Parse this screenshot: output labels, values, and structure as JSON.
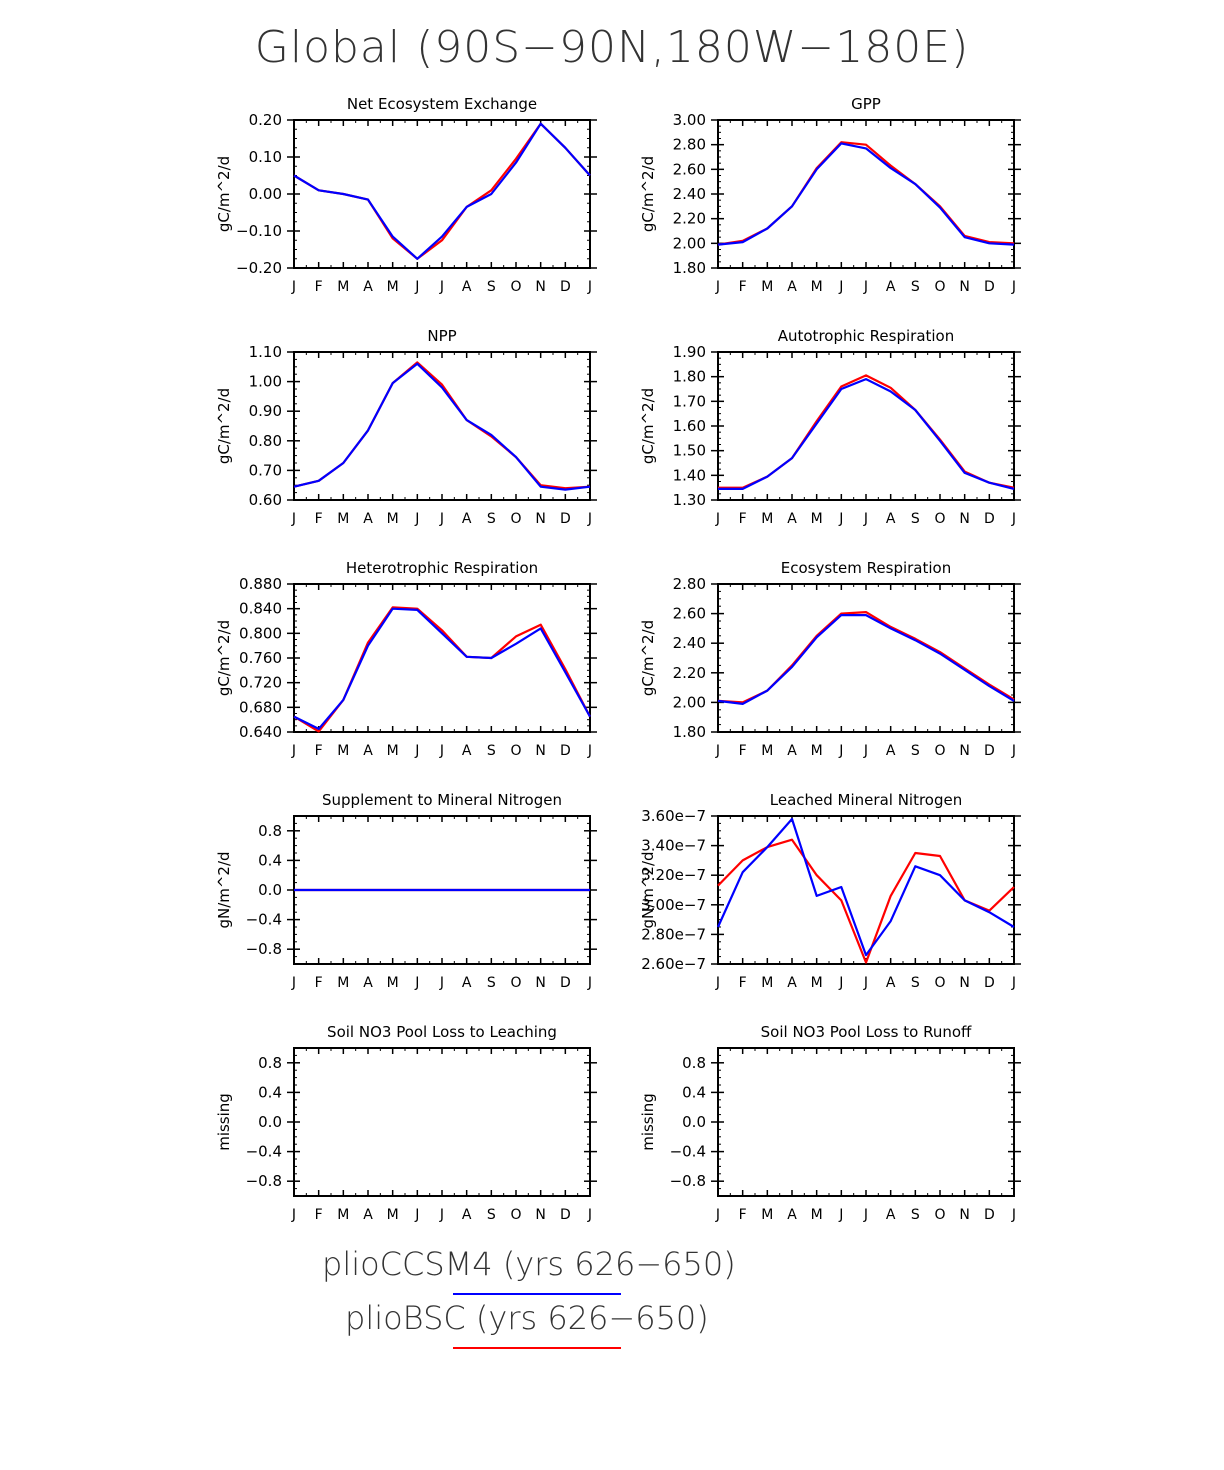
{
  "title": "Global (90S−90N,180W−180E)",
  "months": [
    "J",
    "F",
    "M",
    "A",
    "M",
    "J",
    "J",
    "A",
    "S",
    "O",
    "N",
    "D",
    "J"
  ],
  "colors": {
    "pliocssm4": "#0000ff",
    "pliobsc": "#ff0000"
  },
  "legend": [
    {
      "label": "plioCCSM4 (yrs 626−650)",
      "color": "#0000ff"
    },
    {
      "label": "plioBSC (yrs 626−650)",
      "color": "#ff0000"
    }
  ],
  "chart_data": [
    {
      "type": "line",
      "title": "Net Ecosystem Exchange",
      "ylabel": "gC/m^2/d",
      "ylim": [
        -0.2,
        0.2
      ],
      "yticks": [
        -0.2,
        -0.1,
        0.0,
        0.1,
        0.2
      ],
      "decimals": 2,
      "series": [
        {
          "color": "#ff0000",
          "values": [
            0.05,
            0.01,
            0.0,
            -0.015,
            -0.12,
            -0.175,
            -0.125,
            -0.035,
            0.01,
            0.095,
            0.19,
            0.125,
            0.05
          ]
        },
        {
          "color": "#0000ff",
          "values": [
            0.05,
            0.01,
            0.0,
            -0.015,
            -0.115,
            -0.175,
            -0.115,
            -0.035,
            0.0,
            0.085,
            0.19,
            0.125,
            0.05
          ]
        }
      ]
    },
    {
      "type": "line",
      "title": "GPP",
      "ylabel": "gC/m^2/d",
      "ylim": [
        1.8,
        3.0
      ],
      "yticks": [
        1.8,
        2.0,
        2.2,
        2.4,
        2.6,
        2.8,
        3.0
      ],
      "decimals": 2,
      "series": [
        {
          "color": "#ff0000",
          "values": [
            1.99,
            2.02,
            2.12,
            2.3,
            2.61,
            2.82,
            2.8,
            2.63,
            2.48,
            2.3,
            2.06,
            2.01,
            2.0
          ]
        },
        {
          "color": "#0000ff",
          "values": [
            1.99,
            2.01,
            2.12,
            2.3,
            2.6,
            2.81,
            2.77,
            2.61,
            2.48,
            2.29,
            2.05,
            2.0,
            1.99
          ]
        }
      ]
    },
    {
      "type": "line",
      "title": "NPP",
      "ylabel": "gC/m^2/d",
      "ylim": [
        0.6,
        1.1
      ],
      "yticks": [
        0.6,
        0.7,
        0.8,
        0.9,
        1.0,
        1.1
      ],
      "decimals": 2,
      "series": [
        {
          "color": "#ff0000",
          "values": [
            0.645,
            0.665,
            0.725,
            0.835,
            0.995,
            1.065,
            0.99,
            0.87,
            0.815,
            0.745,
            0.65,
            0.64,
            0.645
          ]
        },
        {
          "color": "#0000ff",
          "values": [
            0.645,
            0.665,
            0.725,
            0.835,
            0.995,
            1.06,
            0.98,
            0.87,
            0.82,
            0.745,
            0.645,
            0.635,
            0.645
          ]
        }
      ]
    },
    {
      "type": "line",
      "title": "Autotrophic Respiration",
      "ylabel": "gC/m^2/d",
      "ylim": [
        1.3,
        1.9
      ],
      "yticks": [
        1.3,
        1.4,
        1.5,
        1.6,
        1.7,
        1.8,
        1.9
      ],
      "decimals": 2,
      "series": [
        {
          "color": "#ff0000",
          "values": [
            1.35,
            1.35,
            1.395,
            1.47,
            1.62,
            1.76,
            1.805,
            1.755,
            1.665,
            1.545,
            1.415,
            1.37,
            1.35
          ]
        },
        {
          "color": "#0000ff",
          "values": [
            1.345,
            1.345,
            1.395,
            1.47,
            1.61,
            1.75,
            1.79,
            1.74,
            1.665,
            1.54,
            1.41,
            1.37,
            1.345
          ]
        }
      ]
    },
    {
      "type": "line",
      "title": "Heterotrophic Respiration",
      "ylabel": "gC/m^2/d",
      "ylim": [
        0.64,
        0.88
      ],
      "yticks": [
        0.64,
        0.68,
        0.72,
        0.76,
        0.8,
        0.84,
        0.88
      ],
      "decimals": 3,
      "series": [
        {
          "color": "#ff0000",
          "values": [
            0.665,
            0.641,
            0.692,
            0.785,
            0.842,
            0.84,
            0.805,
            0.762,
            0.76,
            0.795,
            0.814,
            0.742,
            0.665
          ]
        },
        {
          "color": "#0000ff",
          "values": [
            0.665,
            0.645,
            0.692,
            0.78,
            0.84,
            0.838,
            0.8,
            0.762,
            0.76,
            0.783,
            0.808,
            0.737,
            0.665
          ]
        }
      ]
    },
    {
      "type": "line",
      "title": "Ecosystem Respiration",
      "ylabel": "gC/m^2/d",
      "ylim": [
        1.8,
        2.8
      ],
      "yticks": [
        1.8,
        2.0,
        2.2,
        2.4,
        2.6,
        2.8
      ],
      "decimals": 2,
      "series": [
        {
          "color": "#ff0000",
          "values": [
            2.01,
            2.0,
            2.08,
            2.25,
            2.45,
            2.6,
            2.61,
            2.51,
            2.43,
            2.34,
            2.23,
            2.12,
            2.02
          ]
        },
        {
          "color": "#0000ff",
          "values": [
            2.01,
            1.99,
            2.08,
            2.24,
            2.44,
            2.59,
            2.59,
            2.5,
            2.42,
            2.33,
            2.22,
            2.11,
            2.01
          ]
        }
      ]
    },
    {
      "type": "line",
      "title": "Supplement to Mineral Nitrogen",
      "ylabel": "gN/m^2/d",
      "ylim": [
        -1.0,
        1.0
      ],
      "yticks": [
        -0.8,
        -0.4,
        0.0,
        0.4,
        0.8
      ],
      "decimals": 1,
      "series": [
        {
          "color": "#ff0000",
          "values": [
            0,
            0,
            0,
            0,
            0,
            0,
            0,
            0,
            0,
            0,
            0,
            0,
            0
          ]
        },
        {
          "color": "#0000ff",
          "values": [
            0,
            0,
            0,
            0,
            0,
            0,
            0,
            0,
            0,
            0,
            0,
            0,
            0
          ]
        }
      ]
    },
    {
      "type": "line",
      "title": "Leached Mineral Nitrogen",
      "ylabel": "gN/m^2/d",
      "ylim": [
        2.6e-07,
        3.6e-07
      ],
      "yticks": [
        2.6e-07,
        2.8e-07,
        3e-07,
        3.2e-07,
        3.4e-07,
        3.6e-07
      ],
      "format": "exp",
      "series": [
        {
          "color": "#ff0000",
          "values": [
            3.13e-07,
            3.3e-07,
            3.39e-07,
            3.44e-07,
            3.2e-07,
            3.03e-07,
            2.61e-07,
            3.06e-07,
            3.35e-07,
            3.33e-07,
            3.03e-07,
            2.96e-07,
            3.12e-07
          ]
        },
        {
          "color": "#0000ff",
          "values": [
            2.85e-07,
            3.22e-07,
            3.39e-07,
            3.58e-07,
            3.06e-07,
            3.12e-07,
            2.66e-07,
            2.89e-07,
            3.26e-07,
            3.2e-07,
            3.03e-07,
            2.95e-07,
            2.85e-07
          ]
        }
      ]
    },
    {
      "type": "line",
      "title": "Soil NO3 Pool Loss to Leaching",
      "ylabel": "missing",
      "ylim": [
        -1.0,
        1.0
      ],
      "yticks": [
        -0.8,
        -0.4,
        0.0,
        0.4,
        0.8
      ],
      "decimals": 1,
      "series": []
    },
    {
      "type": "line",
      "title": "Soil NO3 Pool Loss to Runoff",
      "ylabel": "missing",
      "ylim": [
        -1.0,
        1.0
      ],
      "yticks": [
        -0.8,
        -0.4,
        0.0,
        0.4,
        0.8
      ],
      "decimals": 1,
      "series": []
    }
  ]
}
